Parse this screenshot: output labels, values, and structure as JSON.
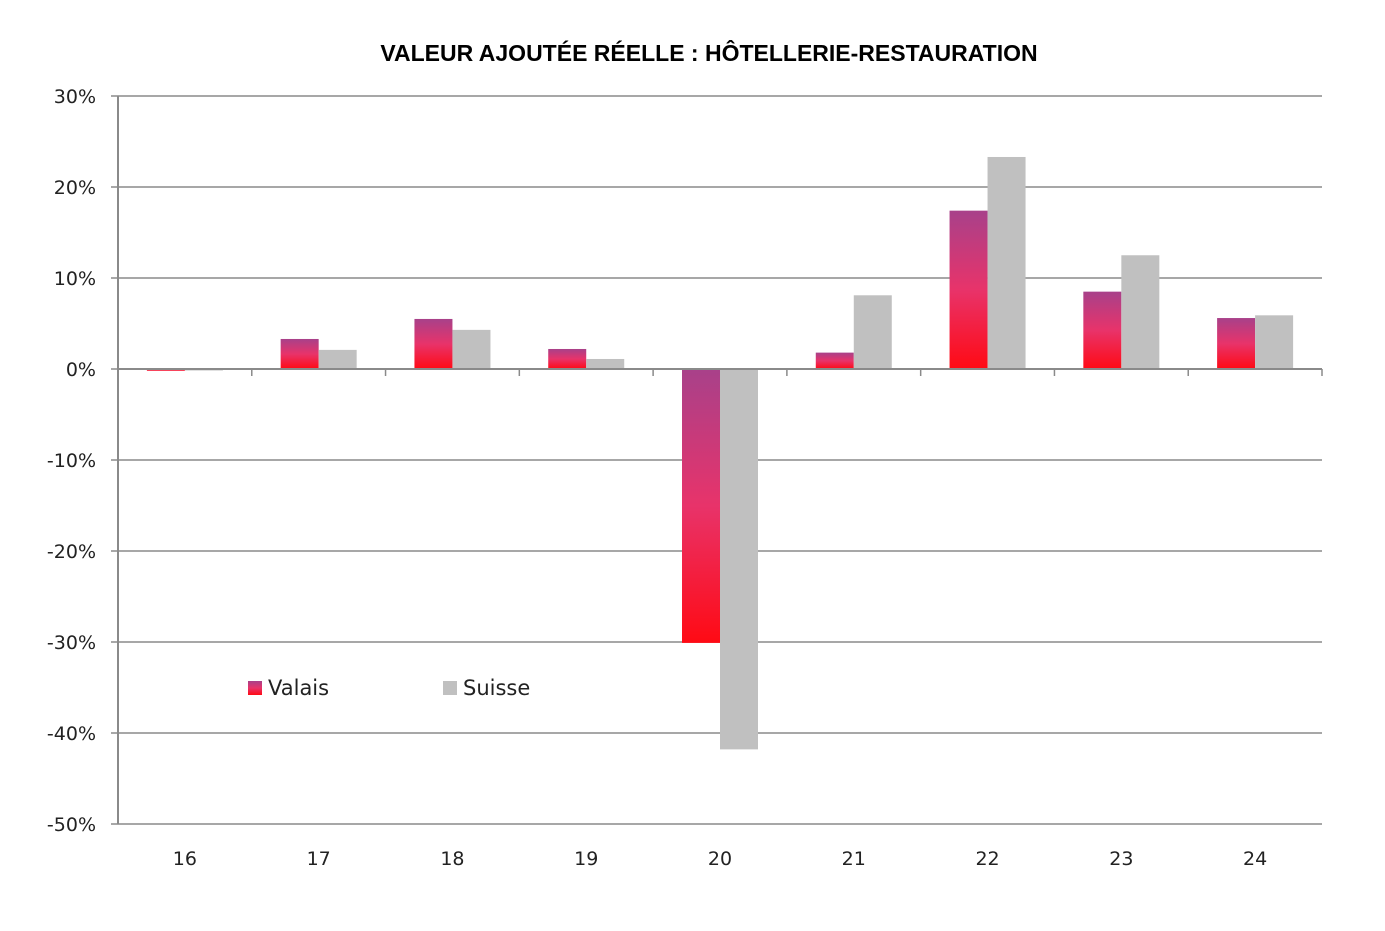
{
  "chart_data": {
    "type": "bar",
    "title": "VALEUR AJOUTÉE RÉELLE : HÔTELLERIE-RESTAURATION",
    "xlabel": "",
    "ylabel": "",
    "categories": [
      "16",
      "17",
      "18",
      "19",
      "20",
      "21",
      "22",
      "23",
      "24"
    ],
    "series": [
      {
        "name": "Valais",
        "values": [
          -0.2,
          3.3,
          5.5,
          2.2,
          -30.1,
          1.8,
          17.4,
          8.5,
          5.6
        ],
        "color_top": "#a8418a",
        "color_mid": "#e8336a",
        "color_bottom": "#ff0a14"
      },
      {
        "name": "Suisse",
        "values": [
          -0.1,
          2.1,
          4.3,
          1.1,
          -41.8,
          8.1,
          23.3,
          12.5,
          5.9
        ],
        "color": "#c0c0c0"
      }
    ],
    "ylim": [
      -50,
      30
    ],
    "yticks": [
      30,
      20,
      10,
      0,
      -10,
      -20,
      -30,
      -40,
      -50
    ],
    "ytick_labels": [
      "30%",
      "20%",
      "10%",
      "0%",
      "-10%",
      "-20%",
      "-30%",
      "-40%",
      "-50%"
    ],
    "grid": true,
    "legend_position": "lower-left inside"
  }
}
